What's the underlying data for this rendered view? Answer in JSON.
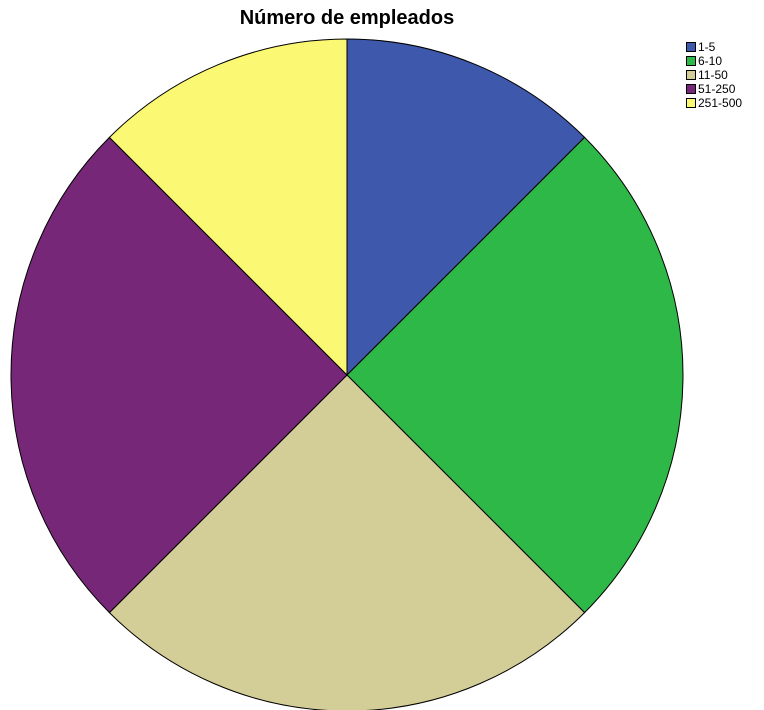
{
  "chart_data": {
    "type": "pie",
    "title": "Número de empleados",
    "categories": [
      "1-5",
      "6-10",
      "11-50",
      "51-250",
      "251-500"
    ],
    "values": [
      12.5,
      25,
      25,
      25,
      12.5
    ],
    "colors": [
      "#3e58ac",
      "#2eb848",
      "#d3ce97",
      "#772778",
      "#fbf873"
    ],
    "legend": {
      "placement": "top-right",
      "entries": [
        "1-5",
        "6-10",
        "11-50",
        "51-250",
        "251-500"
      ]
    },
    "start_angle": "top",
    "direction": "clockwise"
  }
}
